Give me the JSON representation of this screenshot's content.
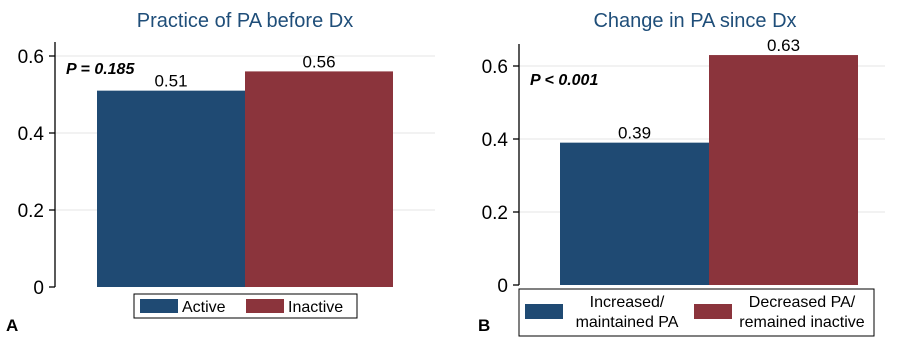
{
  "chart_data": [
    {
      "type": "bar",
      "panel_label": "A",
      "title": "Practice of PA before Dx",
      "annotation": "P = 0.185",
      "ylim": [
        0,
        0.6
      ],
      "yticks": [
        "0",
        "0.2",
        "0.4",
        "0.6"
      ],
      "grid": true,
      "legend_position": "bottom",
      "series": [
        {
          "name": "Active",
          "value": 0.51,
          "label": "0.51",
          "color": "#1f4a73"
        },
        {
          "name": "Inactive",
          "value": 0.56,
          "label": "0.56",
          "color": "#8b343c"
        }
      ]
    },
    {
      "type": "bar",
      "panel_label": "B",
      "title": "Change in PA since Dx",
      "annotation": "P < 0.001",
      "ylim": [
        0,
        0.6
      ],
      "yticks": [
        "0",
        "0.2",
        "0.4",
        "0.6"
      ],
      "grid": true,
      "legend_position": "bottom",
      "series": [
        {
          "name": "Increased/ maintained PA",
          "name_lines": [
            "Increased/",
            "maintained PA"
          ],
          "value": 0.39,
          "label": "0.39",
          "color": "#1f4a73"
        },
        {
          "name": "Decreased PA/ remained inactive",
          "name_lines": [
            "Decreased PA/",
            "remained inactive"
          ],
          "value": 0.63,
          "label": "0.63",
          "color": "#8b343c"
        }
      ]
    }
  ]
}
